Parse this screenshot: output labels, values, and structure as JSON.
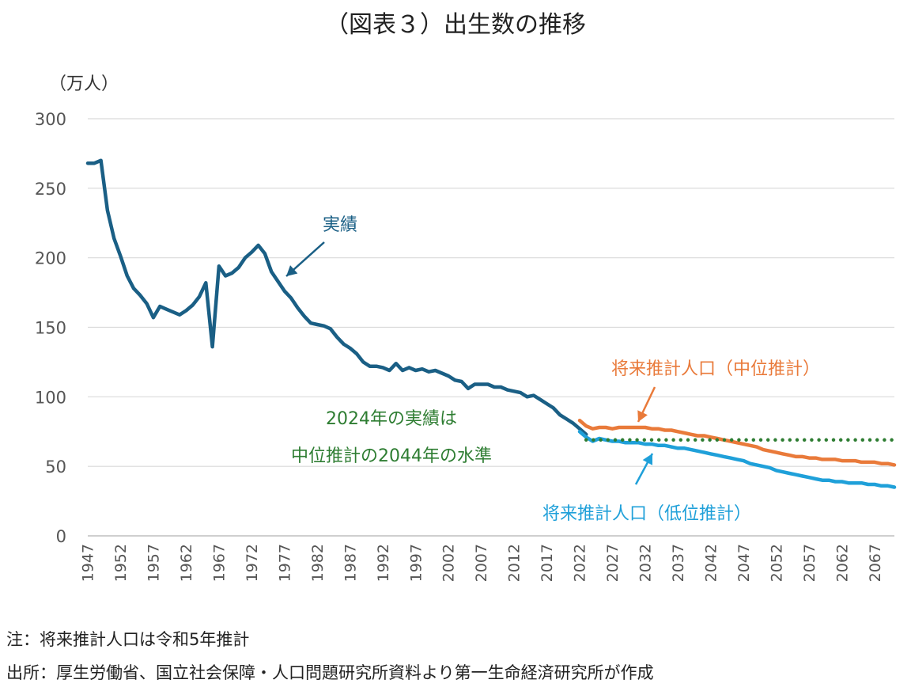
{
  "chart_data": {
    "type": "line",
    "title": "（図表３）出生数の推移",
    "ylabel": "（万人）",
    "xlabel": "",
    "ylim": [
      0,
      300
    ],
    "xlim": [
      1947,
      2070
    ],
    "yticks": [
      0,
      50,
      100,
      150,
      200,
      250,
      300
    ],
    "xticks": [
      1947,
      1952,
      1957,
      1962,
      1967,
      1972,
      1977,
      1982,
      1987,
      1992,
      1997,
      2002,
      2007,
      2012,
      2017,
      2022,
      2027,
      2032,
      2037,
      2042,
      2047,
      2052,
      2057,
      2062,
      2067
    ],
    "grid": true,
    "series": [
      {
        "name": "実績",
        "color": "#1a5f85",
        "style": "solid",
        "x": [
          1947,
          1948,
          1949,
          1950,
          1951,
          1952,
          1953,
          1954,
          1955,
          1956,
          1957,
          1958,
          1959,
          1960,
          1961,
          1962,
          1963,
          1964,
          1965,
          1966,
          1967,
          1968,
          1969,
          1970,
          1971,
          1972,
          1973,
          1974,
          1975,
          1976,
          1977,
          1978,
          1979,
          1980,
          1981,
          1982,
          1983,
          1984,
          1985,
          1986,
          1987,
          1988,
          1989,
          1990,
          1991,
          1992,
          1993,
          1994,
          1995,
          1996,
          1997,
          1998,
          1999,
          2000,
          2001,
          2002,
          2003,
          2004,
          2005,
          2006,
          2007,
          2008,
          2009,
          2010,
          2011,
          2012,
          2013,
          2014,
          2015,
          2016,
          2017,
          2018,
          2019,
          2020,
          2021,
          2022,
          2023
        ],
        "values": [
          268,
          268,
          270,
          234,
          214,
          201,
          187,
          178,
          173,
          167,
          157,
          165,
          163,
          161,
          159,
          162,
          166,
          172,
          182,
          136,
          194,
          187,
          189,
          193,
          200,
          204,
          209,
          203,
          190,
          183,
          176,
          171,
          164,
          158,
          153,
          152,
          151,
          149,
          143,
          138,
          135,
          131,
          125,
          122,
          122,
          121,
          119,
          124,
          119,
          121,
          119,
          120,
          118,
          119,
          117,
          115,
          112,
          111,
          106,
          109,
          109,
          109,
          107,
          107,
          105,
          104,
          103,
          100,
          101,
          98,
          95,
          92,
          87,
          84,
          81,
          77,
          73
        ]
      },
      {
        "name": "将来推計人口（中位推計）",
        "color": "#e97a3a",
        "style": "solid",
        "x": [
          2022,
          2023,
          2024,
          2025,
          2026,
          2027,
          2028,
          2029,
          2030,
          2031,
          2032,
          2033,
          2034,
          2035,
          2036,
          2037,
          2038,
          2039,
          2040,
          2041,
          2042,
          2043,
          2044,
          2045,
          2046,
          2047,
          2048,
          2049,
          2050,
          2051,
          2052,
          2053,
          2054,
          2055,
          2056,
          2057,
          2058,
          2059,
          2060,
          2061,
          2062,
          2063,
          2064,
          2065,
          2066,
          2067,
          2068,
          2069,
          2070
        ],
        "values": [
          83,
          79,
          77,
          78,
          78,
          77,
          78,
          78,
          78,
          78,
          78,
          77,
          77,
          76,
          76,
          75,
          74,
          73,
          72,
          72,
          71,
          70,
          69,
          68,
          67,
          66,
          65,
          64,
          62,
          61,
          60,
          59,
          58,
          57,
          57,
          56,
          56,
          55,
          55,
          55,
          54,
          54,
          54,
          53,
          53,
          53,
          52,
          52,
          51
        ]
      },
      {
        "name": "将来推計人口（低位推計）",
        "color": "#1fa0d9",
        "style": "solid",
        "x": [
          2022,
          2023,
          2024,
          2025,
          2026,
          2027,
          2028,
          2029,
          2030,
          2031,
          2032,
          2033,
          2034,
          2035,
          2036,
          2037,
          2038,
          2039,
          2040,
          2041,
          2042,
          2043,
          2044,
          2045,
          2046,
          2047,
          2048,
          2049,
          2050,
          2051,
          2052,
          2053,
          2054,
          2055,
          2056,
          2057,
          2058,
          2059,
          2060,
          2061,
          2062,
          2063,
          2064,
          2065,
          2066,
          2067,
          2068,
          2069,
          2070
        ],
        "values": [
          75,
          71,
          68,
          70,
          69,
          68,
          68,
          67,
          67,
          67,
          66,
          66,
          65,
          65,
          64,
          63,
          63,
          62,
          61,
          60,
          59,
          58,
          57,
          56,
          55,
          54,
          52,
          51,
          50,
          49,
          47,
          46,
          45,
          44,
          43,
          42,
          41,
          40,
          40,
          39,
          39,
          38,
          38,
          38,
          37,
          37,
          36,
          36,
          35
        ]
      },
      {
        "name": "2024年の実績水準",
        "color": "#2e7d32",
        "style": "dotted",
        "x": [
          2023,
          2070
        ],
        "values": [
          69,
          69
        ]
      }
    ],
    "annotations": [
      {
        "id": "actual",
        "text": "実績",
        "color": "#1a5f85"
      },
      {
        "id": "mid",
        "text": "将来推計人口（中位推計）",
        "color": "#e97a3a"
      },
      {
        "id": "low",
        "text": "将来推計人口（低位推計）",
        "color": "#1fa0d9"
      },
      {
        "id": "note1",
        "text": "2024年の実績は",
        "color": "#2e7d32"
      },
      {
        "id": "note2",
        "text": "中位推計の2044年の水準",
        "color": "#2e7d32"
      }
    ]
  },
  "notes": {
    "note": "注：将来推計人口は令和5年推計",
    "source": "出所：厚生労働省、国立社会保障・人口問題研究所資料より第一生命経済研究所が作成"
  },
  "colors": {
    "axis_text": "#555555",
    "grid": "#d9d9d9"
  }
}
